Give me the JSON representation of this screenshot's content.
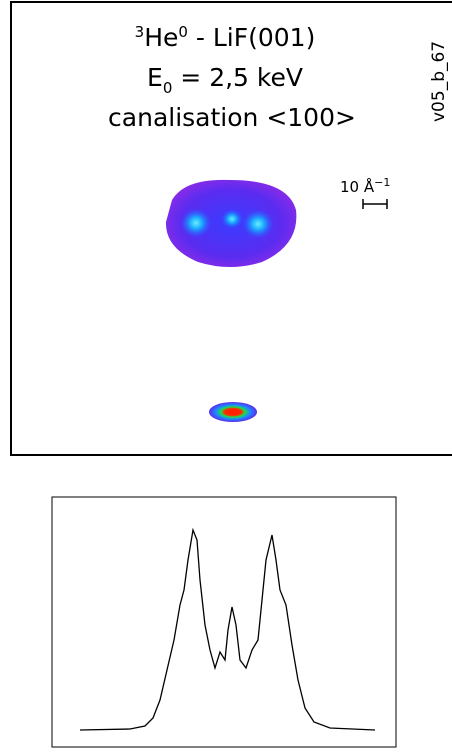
{
  "figure": {
    "title": {
      "line1": {
        "mass": "3",
        "element": "He",
        "charge": "0",
        "rest": " - LiF(001)"
      },
      "line2": {
        "symbol": "E",
        "subscript": "0",
        "rest": " = 2,5 keV"
      },
      "line3": "canalisation <100>"
    },
    "run_id": "v05_b_67",
    "scale_bar": {
      "text": "10 Å",
      "exponent": "−1"
    }
  }
}
